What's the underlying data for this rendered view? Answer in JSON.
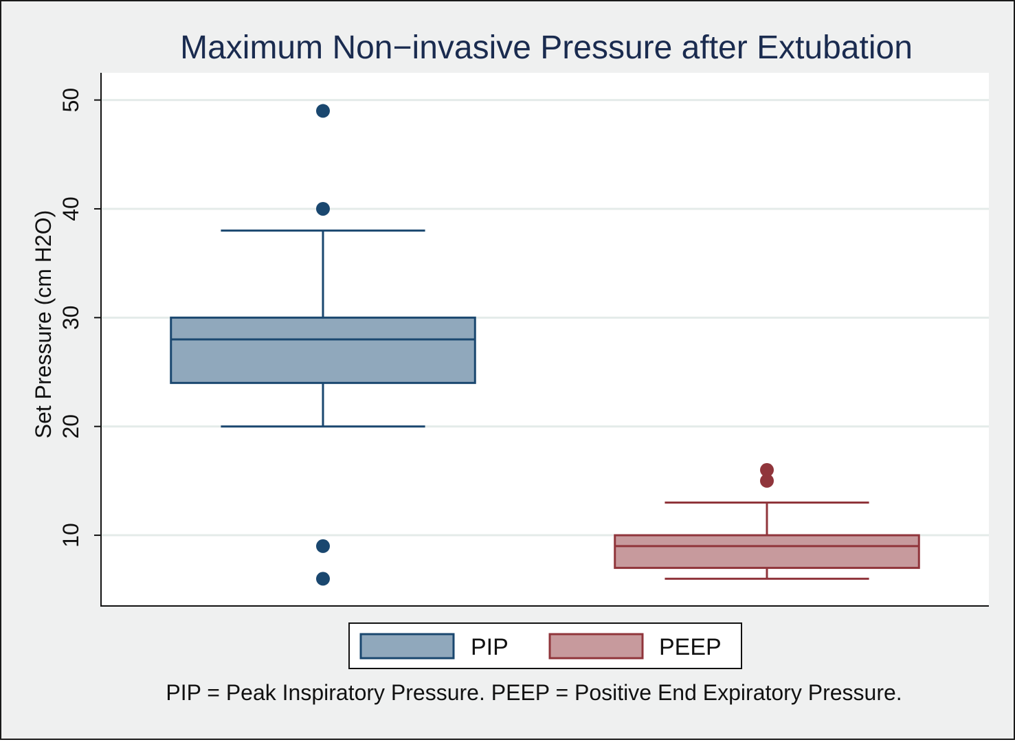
{
  "chart_data": {
    "type": "boxplot",
    "title": "Maximum Non−invasive Pressure after Extubation",
    "ylabel": "Set Pressure (cm H2O)",
    "xlabel": "",
    "ylim": [
      3.5,
      52.5
    ],
    "yticks": [
      10,
      20,
      30,
      40,
      50
    ],
    "grid": true,
    "legend_position": "bottom",
    "note": "PIP = Peak Inspiratory Pressure. PEEP = Positive End Expiratory Pressure.",
    "series": [
      {
        "name": "PIP",
        "color": "#1a476f",
        "fill": "#90a8bc",
        "whisker_low": 20,
        "q1": 24,
        "median": 28,
        "q3": 30,
        "whisker_high": 38,
        "outliers": [
          49,
          40,
          9,
          6
        ]
      },
      {
        "name": "PEEP",
        "color": "#90353b",
        "fill": "#c79a9d",
        "whisker_low": 6,
        "q1": 7,
        "median": 9,
        "q3": 10,
        "whisker_high": 13,
        "outliers": [
          16,
          15
        ]
      }
    ]
  }
}
